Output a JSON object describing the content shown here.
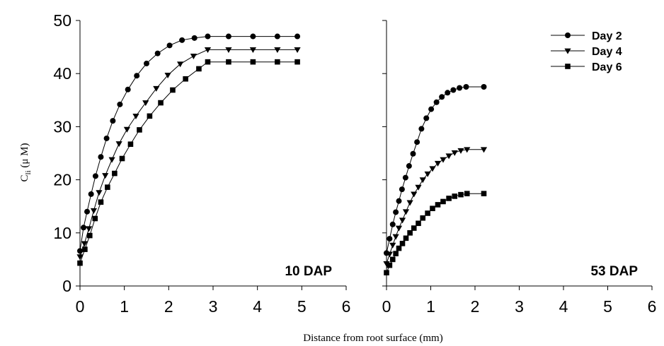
{
  "figure": {
    "ylabel_main": "C",
    "ylabel_sub": "li",
    "ylabel_unit": " (μ M)",
    "xlabel": "Distance from root surface (mm)"
  },
  "legend": [
    {
      "label": "Day 2",
      "marker": "circle"
    },
    {
      "label": "Day 4",
      "marker": "triangle-down"
    },
    {
      "label": "Day 6",
      "marker": "square"
    }
  ],
  "chart_data": [
    {
      "type": "line",
      "panel_label": "10 DAP",
      "xlim": [
        0,
        6
      ],
      "ylim": [
        0,
        50
      ],
      "xticks": [
        0,
        1,
        2,
        3,
        4,
        5,
        6
      ],
      "yticks": [
        0,
        10,
        20,
        30,
        40,
        50
      ],
      "series": [
        {
          "name": "Day 2",
          "marker": "circle",
          "x": [
            0,
            0.08,
            0.16,
            0.25,
            0.35,
            0.47,
            0.6,
            0.74,
            0.9,
            1.08,
            1.28,
            1.5,
            1.75,
            2.02,
            2.3,
            2.58,
            2.88,
            3.35,
            3.9,
            4.45,
            4.9
          ],
          "y": [
            6.6,
            11.0,
            14.0,
            17.3,
            20.7,
            24.3,
            27.8,
            31.1,
            34.2,
            37.0,
            39.6,
            41.9,
            43.8,
            45.3,
            46.3,
            46.7,
            47.0,
            47.0,
            47.0,
            47.0,
            47.0
          ]
        },
        {
          "name": "Day 4",
          "marker": "triangle-down",
          "x": [
            0,
            0.1,
            0.2,
            0.31,
            0.43,
            0.57,
            0.72,
            0.88,
            1.06,
            1.26,
            1.48,
            1.72,
            1.98,
            2.26,
            2.56,
            2.88,
            3.35,
            3.9,
            4.45,
            4.9
          ],
          "y": [
            5.5,
            8.0,
            10.8,
            14.2,
            17.6,
            20.8,
            23.8,
            26.8,
            29.5,
            32.0,
            34.5,
            37.2,
            39.7,
            41.8,
            43.3,
            44.5,
            44.5,
            44.5,
            44.5,
            44.5
          ]
        },
        {
          "name": "Day 6",
          "marker": "square",
          "x": [
            0,
            0.11,
            0.22,
            0.34,
            0.47,
            0.62,
            0.78,
            0.95,
            1.14,
            1.34,
            1.57,
            1.82,
            2.09,
            2.38,
            2.68,
            2.88,
            3.35,
            3.9,
            4.45,
            4.9
          ],
          "y": [
            4.3,
            6.9,
            9.5,
            12.7,
            15.8,
            18.6,
            21.2,
            24.0,
            26.7,
            29.4,
            32.0,
            34.5,
            36.9,
            39.0,
            40.9,
            42.2,
            42.2,
            42.2,
            42.2,
            42.2
          ]
        }
      ]
    },
    {
      "type": "line",
      "panel_label": "53 DAP",
      "xlim": [
        0,
        6
      ],
      "ylim": [
        0,
        50
      ],
      "xticks": [
        0,
        1,
        2,
        3,
        4,
        5,
        6
      ],
      "yticks": [
        0,
        10,
        20,
        30,
        40,
        50
      ],
      "series": [
        {
          "name": "Day 2",
          "marker": "circle",
          "x": [
            0,
            0.07,
            0.14,
            0.21,
            0.28,
            0.35,
            0.43,
            0.51,
            0.6,
            0.69,
            0.79,
            0.9,
            1.01,
            1.13,
            1.25,
            1.38,
            1.51,
            1.65,
            1.8,
            2.2
          ],
          "y": [
            6.2,
            8.9,
            11.6,
            13.9,
            16.0,
            18.2,
            20.4,
            22.6,
            24.9,
            27.1,
            29.6,
            31.6,
            33.3,
            34.6,
            35.6,
            36.4,
            36.9,
            37.3,
            37.5,
            37.5
          ]
        },
        {
          "name": "Day 4",
          "marker": "triangle-down",
          "x": [
            0,
            0.07,
            0.14,
            0.21,
            0.28,
            0.36,
            0.44,
            0.53,
            0.62,
            0.72,
            0.82,
            0.93,
            1.04,
            1.16,
            1.28,
            1.41,
            1.54,
            1.68,
            1.82,
            2.2
          ],
          "y": [
            4.2,
            6.0,
            7.7,
            9.3,
            10.9,
            12.4,
            14.0,
            15.7,
            17.3,
            18.6,
            20.0,
            21.1,
            22.1,
            23.1,
            23.8,
            24.5,
            25.1,
            25.5,
            25.7,
            25.7
          ]
        },
        {
          "name": "Day 6",
          "marker": "square",
          "x": [
            0,
            0.07,
            0.14,
            0.21,
            0.28,
            0.36,
            0.44,
            0.53,
            0.62,
            0.72,
            0.82,
            0.93,
            1.04,
            1.16,
            1.28,
            1.41,
            1.54,
            1.68,
            1.82,
            2.2
          ],
          "y": [
            2.5,
            3.9,
            5.0,
            6.1,
            7.1,
            8.0,
            9.0,
            10.0,
            10.9,
            11.8,
            12.8,
            13.7,
            14.6,
            15.3,
            15.9,
            16.5,
            16.9,
            17.2,
            17.4,
            17.4
          ]
        }
      ]
    }
  ]
}
